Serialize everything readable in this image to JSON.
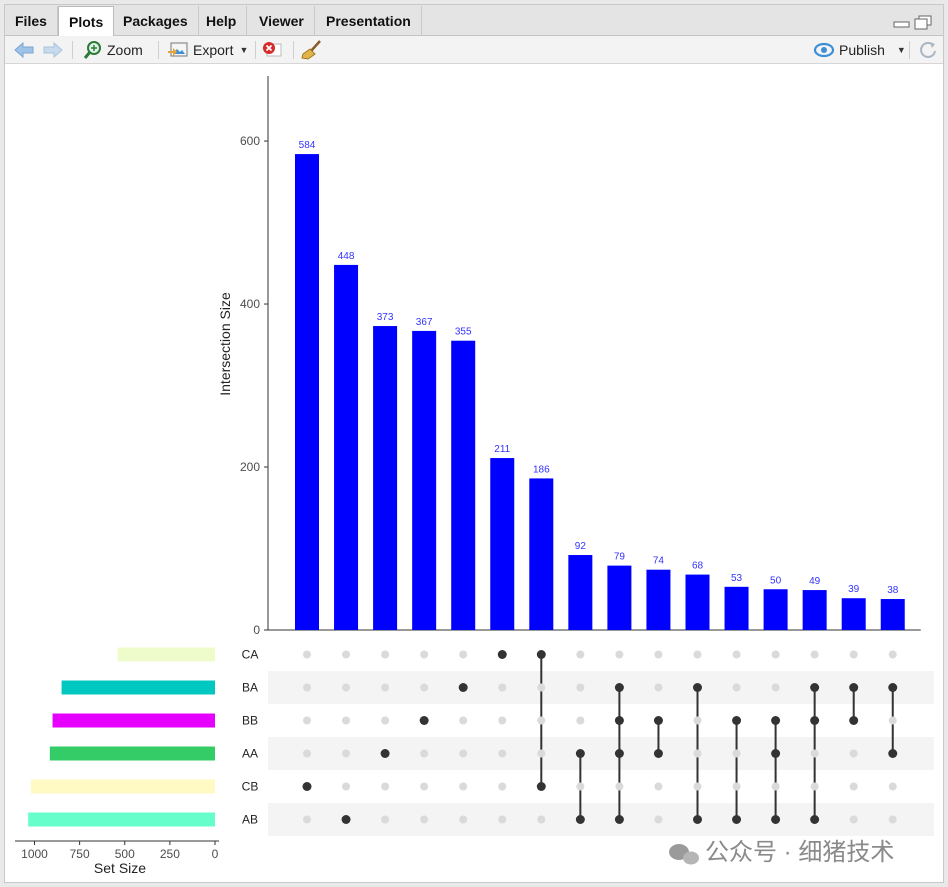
{
  "tabs": [
    {
      "label": "Files",
      "active": false
    },
    {
      "label": "Plots",
      "active": true
    },
    {
      "label": "Packages",
      "active": false
    },
    {
      "label": "Help",
      "active": false
    },
    {
      "label": "Viewer",
      "active": false
    },
    {
      "label": "Presentation",
      "active": false
    }
  ],
  "toolbar": {
    "back_icon": "arrow-left-icon",
    "forward_icon": "arrow-right-icon",
    "zoom_label": "Zoom",
    "export_label": "Export",
    "clear_icon": "close-circle-icon",
    "broom_icon": "broom-icon",
    "publish_label": "Publish",
    "refresh_icon": "refresh-icon"
  },
  "watermark": "公众号 · 细猪技术",
  "chart_data": {
    "type": "bar",
    "ylabel": "Intersection Size",
    "ylim": [
      0,
      670
    ],
    "yticks": [
      0,
      200,
      400,
      600
    ],
    "bar_color": "#0000ff",
    "label_color": "#3333ff",
    "values": [
      584,
      448,
      373,
      367,
      355,
      211,
      186,
      92,
      79,
      74,
      68,
      53,
      50,
      49,
      39,
      38
    ],
    "sets": [
      "CA",
      "BA",
      "BB",
      "AA",
      "CB",
      "AB"
    ],
    "intersections": [
      [
        "CB"
      ],
      [
        "AB"
      ],
      [
        "AA"
      ],
      [
        "BB"
      ],
      [
        "BA"
      ],
      [
        "CA"
      ],
      [
        "CA",
        "CB"
      ],
      [
        "AA",
        "AB"
      ],
      [
        "BA",
        "BB",
        "AA",
        "AB"
      ],
      [
        "BB",
        "AA"
      ],
      [
        "BA",
        "AB"
      ],
      [
        "BB",
        "AB"
      ],
      [
        "BB",
        "AA",
        "AB"
      ],
      [
        "BA",
        "BB",
        "AB"
      ],
      [
        "BA",
        "BB"
      ],
      [
        "BA",
        "AA"
      ]
    ],
    "set_size": {
      "xlabel": "Set Size",
      "xticks": [
        1000,
        750,
        500,
        250,
        0
      ],
      "values": [
        540,
        850,
        900,
        915,
        1020,
        1035
      ],
      "colors": [
        "#eefccc",
        "#00c8c0",
        "#e600ff",
        "#33cc66",
        "#fff9c4",
        "#66ffcc"
      ]
    }
  }
}
